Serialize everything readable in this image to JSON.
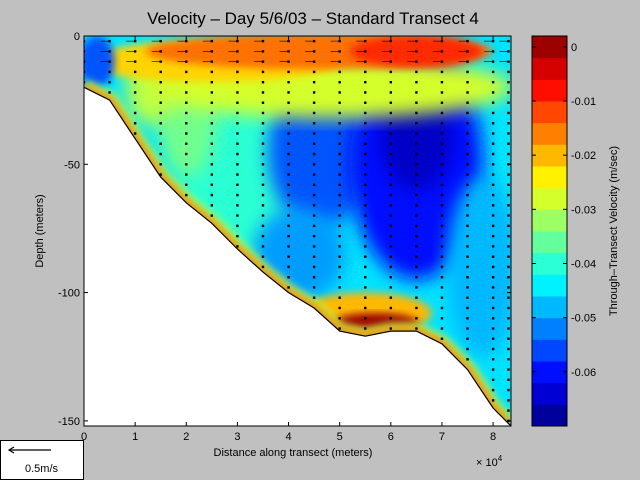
{
  "chart_data": {
    "type": "heatmap",
    "title": "Velocity – Day 5/6/03 – Standard Transect 4",
    "xlabel": "Distance along transect (meters)",
    "ylabel": "Depth (meters)",
    "x_multiplier_label": "× 10",
    "x_multiplier_exp": "4",
    "xlim": [
      0,
      8.35
    ],
    "ylim": [
      -152,
      0
    ],
    "x_ticks": [
      "0",
      "1",
      "2",
      "3",
      "4",
      "5",
      "6",
      "7",
      "8"
    ],
    "y_ticks": [
      "0",
      "-50",
      "-100",
      "-150"
    ],
    "y_tick_values": [
      0,
      -50,
      -100,
      -150
    ],
    "colorbar": {
      "label": "Through–Transect Velocity (m/sec)",
      "range": [
        -0.07,
        0.002
      ],
      "ticks": [
        "0",
        "-0.01",
        "-0.02",
        "-0.03",
        "-0.04",
        "-0.05",
        "-0.06"
      ],
      "tick_values": [
        0,
        -0.01,
        -0.02,
        -0.03,
        -0.04,
        -0.05,
        -0.06
      ]
    },
    "bathymetry": {
      "x": [
        0,
        0.5,
        1.0,
        1.5,
        2.0,
        2.5,
        3.0,
        3.5,
        4.0,
        4.5,
        5.0,
        5.5,
        6.0,
        6.5,
        7.0,
        7.5,
        8.0,
        8.35
      ],
      "depth": [
        -20,
        -25,
        -40,
        -55,
        -65,
        -73,
        -83,
        -92,
        -100,
        -106,
        -115,
        -117,
        -115,
        -115,
        -120,
        -130,
        -145,
        -152
      ]
    },
    "profile_x": [
      0,
      0.5,
      1.0,
      1.5,
      2.0,
      2.5,
      3.0,
      3.5,
      4.0,
      4.5,
      5.0,
      5.5,
      6.0,
      6.5,
      7.0,
      7.5,
      8.0,
      8.3
    ],
    "velocity_field": {
      "surface_band": {
        "depth_range": [
          0,
          -12
        ],
        "velocity": -0.015
      },
      "core": {
        "x": [
          5.5,
          7.5
        ],
        "depth_range": [
          -20,
          -100
        ],
        "velocity": -0.065
      },
      "bottom_jet": {
        "x": [
          4.8,
          6.6
        ],
        "depth": -112,
        "velocity": 0.0
      },
      "nearshore": {
        "x": [
          0,
          0.5
        ],
        "depth_range": [
          0,
          -18
        ],
        "velocity": -0.055
      }
    }
  },
  "scale_arrow": {
    "label": "0.5m/s"
  }
}
